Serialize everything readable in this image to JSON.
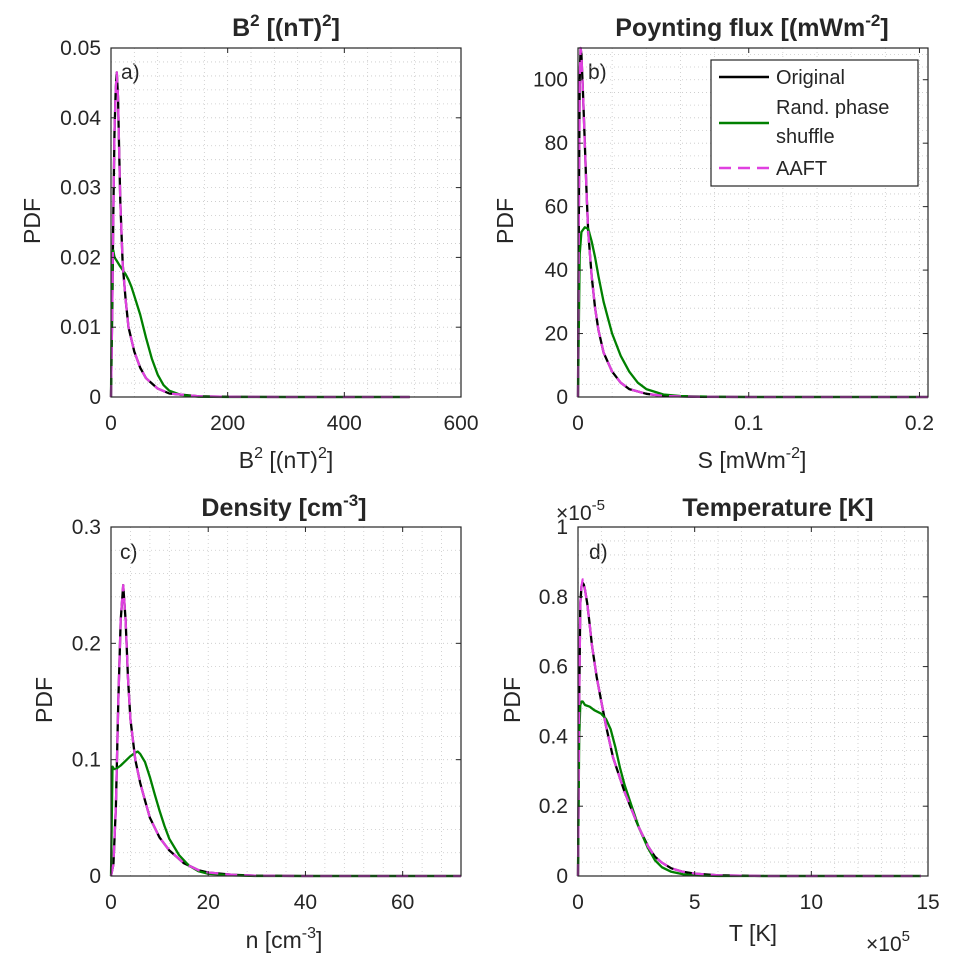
{
  "colors": {
    "original": "#000000",
    "rand_phase_shuffle": "#008000",
    "aaft": "#e040e0",
    "grid": "#c8c8c8",
    "axes": "#262626"
  },
  "legend": {
    "entries": [
      "Original",
      "Rand. phase",
      "shuffle",
      "AAFT"
    ]
  },
  "chart_data": [
    {
      "type": "line",
      "panel_label": "a)",
      "title_main": "B",
      "title_sup": "2",
      "title_rest_1": " [(nT)",
      "title_rest_sup": "2",
      "title_rest_2": "]",
      "xlabel_main": "B",
      "xlabel_sup": "2",
      "xlabel_rest_1": " [(nT)",
      "xlabel_rest_sup": "2",
      "xlabel_rest_2": "]",
      "ylabel": "PDF",
      "xlim": [
        0,
        600
      ],
      "ylim": [
        0,
        0.05
      ],
      "xticks": [
        0,
        200,
        400,
        600
      ],
      "xtick_labels": [
        "0",
        "200",
        "400",
        "600"
      ],
      "yticks": [
        0,
        0.01,
        0.02,
        0.03,
        0.04,
        0.05
      ],
      "ytick_labels": [
        "0",
        "0.01",
        "0.02",
        "0.03",
        "0.04",
        "0.05"
      ],
      "grid": "minor-dotted",
      "series": [
        {
          "name": "Original",
          "style": "solid",
          "x": [
            0,
            2,
            4,
            6,
            8,
            10,
            12,
            14,
            16,
            20,
            25,
            30,
            40,
            50,
            60,
            80,
            100,
            150,
            200,
            300,
            400,
            512
          ],
          "y": [
            0,
            0.012,
            0.026,
            0.038,
            0.044,
            0.0465,
            0.043,
            0.035,
            0.028,
            0.019,
            0.014,
            0.01,
            0.0065,
            0.0042,
            0.0027,
            0.0012,
            0.0005,
            0.0001,
            3e-05,
            0,
            0,
            0
          ]
        },
        {
          "name": "Rand. phase shuffle",
          "style": "solid",
          "x": [
            0,
            2,
            4,
            6,
            10,
            15,
            20,
            25,
            30,
            35,
            40,
            50,
            60,
            70,
            80,
            90,
            100,
            120,
            150,
            200,
            300,
            400,
            512
          ],
          "y": [
            0,
            0.0205,
            0.021,
            0.02,
            0.0195,
            0.0188,
            0.0182,
            0.0176,
            0.0168,
            0.0158,
            0.0145,
            0.0118,
            0.0085,
            0.0055,
            0.0032,
            0.0017,
            0.0009,
            0.0003,
            5e-05,
            0,
            0,
            0,
            0
          ]
        },
        {
          "name": "AAFT",
          "style": "dashed",
          "x": [
            0,
            2,
            4,
            6,
            8,
            10,
            12,
            14,
            16,
            20,
            25,
            30,
            40,
            50,
            60,
            80,
            100,
            150,
            200,
            300,
            400,
            512
          ],
          "y": [
            0,
            0.012,
            0.026,
            0.038,
            0.044,
            0.0465,
            0.043,
            0.035,
            0.028,
            0.019,
            0.014,
            0.01,
            0.0065,
            0.0042,
            0.0027,
            0.0012,
            0.0005,
            0.0001,
            3e-05,
            0,
            0,
            0
          ]
        }
      ]
    },
    {
      "type": "line",
      "panel_label": "b)",
      "title_main": "Poynting flux [(mWm",
      "title_sup": "-2",
      "title_rest_1": "]",
      "xlabel_main": "S [mWm",
      "xlabel_sup": "-2",
      "xlabel_rest_1": "]",
      "ylabel": "PDF",
      "xlim": [
        0,
        0.205
      ],
      "ylim": [
        0,
        110
      ],
      "xticks": [
        0,
        0.1,
        0.2
      ],
      "xtick_labels": [
        "0",
        "0.1",
        "0.2"
      ],
      "yticks": [
        0,
        20,
        40,
        60,
        80,
        100
      ],
      "ytick_labels": [
        "0",
        "20",
        "40",
        "60",
        "80",
        "100"
      ],
      "grid": "minor-dotted",
      "legend_position": "top-right",
      "series": [
        {
          "name": "Original",
          "style": "solid",
          "x": [
            0,
            0.0005,
            0.001,
            0.0015,
            0.002,
            0.003,
            0.004,
            0.005,
            0.006,
            0.008,
            0.01,
            0.012,
            0.015,
            0.02,
            0.025,
            0.03,
            0.04,
            0.05,
            0.07,
            0.1,
            0.15,
            0.205
          ],
          "y": [
            0,
            60,
            100,
            110,
            108,
            95,
            80,
            65,
            52,
            38,
            28,
            21,
            14,
            8,
            4.5,
            2.5,
            1,
            0.3,
            0.05,
            0,
            0,
            0
          ]
        },
        {
          "name": "Rand. phase shuffle",
          "style": "solid",
          "x": [
            0,
            0.001,
            0.002,
            0.004,
            0.006,
            0.008,
            0.01,
            0.012,
            0.015,
            0.018,
            0.02,
            0.025,
            0.03,
            0.035,
            0.04,
            0.05,
            0.06,
            0.08,
            0.1,
            0.15,
            0.205
          ],
          "y": [
            0,
            45,
            52,
            53.5,
            53,
            49,
            44,
            38,
            30,
            24,
            20,
            13,
            8,
            4.5,
            2.5,
            0.8,
            0.3,
            0.05,
            0,
            0,
            0
          ]
        },
        {
          "name": "AAFT",
          "style": "dashed",
          "x": [
            0,
            0.0005,
            0.001,
            0.0015,
            0.002,
            0.003,
            0.004,
            0.005,
            0.006,
            0.008,
            0.01,
            0.012,
            0.015,
            0.02,
            0.025,
            0.03,
            0.04,
            0.05,
            0.07,
            0.1,
            0.15,
            0.205
          ],
          "y": [
            0,
            60,
            100,
            110,
            108,
            95,
            80,
            65,
            52,
            38,
            28,
            21,
            14,
            8,
            4.5,
            2.5,
            1,
            0.3,
            0.05,
            0,
            0,
            0
          ]
        }
      ]
    },
    {
      "type": "line",
      "panel_label": "c)",
      "title_main": "Density [cm",
      "title_sup": "-3",
      "title_rest_1": "]",
      "xlabel_main": "n [cm",
      "xlabel_sup": "-3",
      "xlabel_rest_1": "]",
      "ylabel": "PDF",
      "xlim": [
        0,
        72
      ],
      "ylim": [
        0,
        0.3
      ],
      "xticks": [
        0,
        20,
        40,
        60
      ],
      "xtick_labels": [
        "0",
        "20",
        "40",
        "60"
      ],
      "yticks": [
        0,
        0.1,
        0.2,
        0.3
      ],
      "ytick_labels": [
        "0",
        "0.1",
        "0.2",
        "0.3"
      ],
      "grid": "minor-dotted",
      "series": [
        {
          "name": "Original",
          "style": "solid",
          "x": [
            0,
            0.5,
            1,
            1.5,
            2,
            2.5,
            3,
            3.5,
            4,
            5,
            6,
            7,
            8,
            10,
            12,
            15,
            18,
            20,
            25,
            30,
            40,
            50,
            60,
            72
          ],
          "y": [
            0,
            0.01,
            0.06,
            0.15,
            0.22,
            0.25,
            0.22,
            0.17,
            0.135,
            0.1,
            0.08,
            0.065,
            0.05,
            0.033,
            0.022,
            0.011,
            0.005,
            0.003,
            0.001,
            0.0003,
            0,
            0,
            0,
            0
          ]
        },
        {
          "name": "Rand. phase shuffle",
          "style": "solid",
          "x": [
            0,
            0.3,
            0.6,
            1,
            2,
            3,
            4,
            5,
            5.5,
            6,
            7,
            8,
            9,
            10,
            11,
            12,
            14,
            16,
            18,
            20,
            25,
            30,
            40,
            50,
            60,
            72
          ],
          "y": [
            0,
            0.094,
            0.092,
            0.092,
            0.095,
            0.099,
            0.103,
            0.106,
            0.107,
            0.105,
            0.098,
            0.085,
            0.07,
            0.056,
            0.043,
            0.032,
            0.018,
            0.009,
            0.004,
            0.002,
            0.0005,
            0,
            0,
            0,
            0,
            0
          ]
        },
        {
          "name": "AAFT",
          "style": "dashed",
          "x": [
            0,
            0.5,
            1,
            1.5,
            2,
            2.5,
            3,
            3.5,
            4,
            5,
            6,
            7,
            8,
            10,
            12,
            15,
            18,
            20,
            25,
            30,
            40,
            50,
            60,
            72
          ],
          "y": [
            0,
            0.01,
            0.06,
            0.15,
            0.22,
            0.25,
            0.22,
            0.17,
            0.135,
            0.1,
            0.08,
            0.065,
            0.05,
            0.033,
            0.022,
            0.011,
            0.005,
            0.003,
            0.001,
            0.0003,
            0,
            0,
            0,
            0
          ]
        }
      ]
    },
    {
      "type": "line",
      "panel_label": "d)",
      "title_main": "Temperature [K]",
      "xlabel_main": "T [K]",
      "ylabel": "PDF",
      "y_exponent_base": "×10",
      "y_exponent_power": "-5",
      "x_exponent_base": "×10",
      "x_exponent_power": "5",
      "xlim": [
        0,
        15
      ],
      "ylim": [
        0,
        1
      ],
      "xticks": [
        0,
        5,
        10,
        15
      ],
      "xtick_labels": [
        "0",
        "5",
        "10",
        "15"
      ],
      "yticks": [
        0,
        0.2,
        0.4,
        0.6,
        0.8,
        1
      ],
      "ytick_labels": [
        "0",
        "0.2",
        "0.4",
        "0.6",
        "0.8",
        "1"
      ],
      "grid": "minor-dotted",
      "series": [
        {
          "name": "Original",
          "style": "solid",
          "x": [
            0,
            0.05,
            0.1,
            0.15,
            0.2,
            0.25,
            0.3,
            0.4,
            0.5,
            0.6,
            0.8,
            1.0,
            1.2,
            1.5,
            1.8,
            2.0,
            2.3,
            2.6,
            3.0,
            3.3,
            3.6,
            4.0,
            4.5,
            5,
            6,
            8,
            10,
            12,
            14.7
          ],
          "y": [
            0,
            0.5,
            0.78,
            0.83,
            0.84,
            0.835,
            0.82,
            0.78,
            0.72,
            0.66,
            0.57,
            0.5,
            0.43,
            0.34,
            0.28,
            0.24,
            0.19,
            0.14,
            0.085,
            0.055,
            0.038,
            0.022,
            0.012,
            0.007,
            0.002,
            0,
            0,
            0,
            0
          ]
        },
        {
          "name": "Rand. phase shuffle",
          "style": "solid",
          "x": [
            0,
            0.05,
            0.1,
            0.15,
            0.2,
            0.3,
            0.5,
            0.7,
            1.0,
            1.2,
            1.4,
            1.6,
            1.8,
            2.0,
            2.3,
            2.6,
            3.0,
            3.3,
            3.6,
            4.0,
            4.5,
            5,
            6,
            8,
            10,
            12,
            14.7
          ],
          "y": [
            0,
            0.4,
            0.49,
            0.5,
            0.5,
            0.49,
            0.485,
            0.475,
            0.465,
            0.45,
            0.42,
            0.37,
            0.31,
            0.26,
            0.2,
            0.14,
            0.08,
            0.045,
            0.025,
            0.012,
            0.005,
            0.002,
            0,
            0,
            0,
            0,
            0
          ]
        },
        {
          "name": "AAFT",
          "style": "dashed",
          "x": [
            0,
            0.05,
            0.1,
            0.15,
            0.2,
            0.25,
            0.3,
            0.4,
            0.5,
            0.6,
            0.8,
            1.0,
            1.2,
            1.5,
            1.8,
            2.0,
            2.3,
            2.6,
            3.0,
            3.3,
            3.6,
            4.0,
            4.5,
            5,
            6,
            8,
            10,
            12,
            14.7
          ],
          "y": [
            0,
            0.5,
            0.78,
            0.83,
            0.85,
            0.845,
            0.82,
            0.78,
            0.72,
            0.66,
            0.57,
            0.5,
            0.43,
            0.34,
            0.28,
            0.24,
            0.19,
            0.14,
            0.085,
            0.055,
            0.038,
            0.022,
            0.012,
            0.007,
            0.002,
            0,
            0,
            0,
            0
          ]
        }
      ]
    }
  ]
}
